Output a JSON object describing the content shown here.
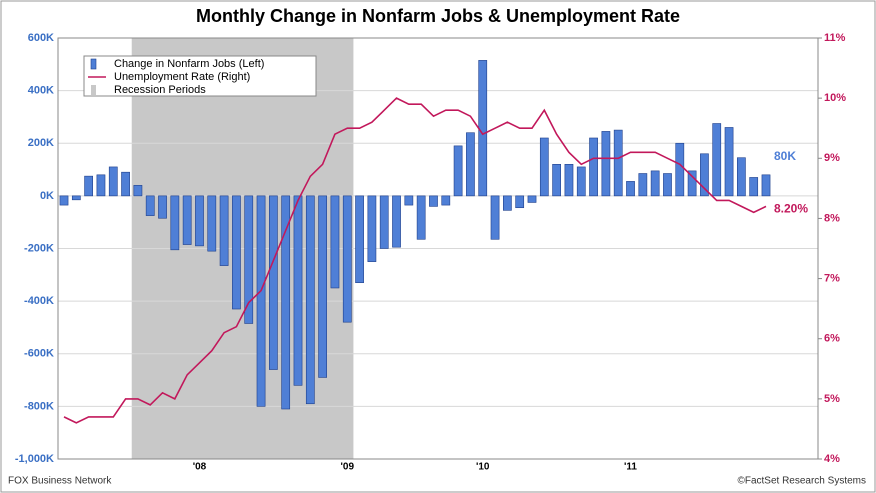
{
  "chart_data": {
    "type": "bar_line",
    "title": "Monthly Change in Nonfarm Jobs & Unemployment Rate",
    "source_left": "FOX Business Network",
    "source_right": "©FactSet Research Systems",
    "categories": [
      null,
      null,
      null,
      null,
      null,
      null,
      null,
      null,
      null,
      null,
      null,
      "'08",
      null,
      null,
      null,
      null,
      null,
      null,
      null,
      null,
      null,
      null,
      null,
      "'09",
      null,
      null,
      null,
      null,
      null,
      null,
      null,
      null,
      null,
      null,
      "'10",
      null,
      null,
      null,
      null,
      null,
      null,
      null,
      null,
      null,
      null,
      null,
      "'11",
      null,
      null,
      null,
      null,
      null,
      null,
      null,
      null,
      null,
      null,
      null
    ],
    "recession": {
      "name": "Recession Periods",
      "color": "#c8c8c8",
      "from": 6,
      "to": 23
    },
    "series": [
      {
        "name": "Change in Nonfarm Jobs (Left)",
        "color": "#4f7fd6",
        "axis": "y",
        "values": [
          -35,
          -15,
          75,
          80,
          110,
          90,
          40,
          -75,
          -85,
          -205,
          -185,
          -190,
          -210,
          -265,
          -430,
          -485,
          -800,
          -660,
          -810,
          -720,
          -790,
          -690,
          -350,
          -480,
          -330,
          -250,
          -200,
          -195,
          -35,
          -165,
          -40,
          -35,
          190,
          240,
          515,
          -165,
          -55,
          -45,
          -25,
          220,
          120,
          120,
          110,
          220,
          245,
          250,
          55,
          85,
          95,
          85,
          200,
          95,
          160,
          275,
          260,
          145,
          70,
          80
        ],
        "value_labels": [
          null,
          null,
          null,
          null,
          null,
          null,
          null,
          null,
          null,
          null,
          null,
          null,
          null,
          null,
          null,
          null,
          null,
          null,
          null,
          null,
          null,
          null,
          null,
          null,
          null,
          null,
          null,
          null,
          null,
          null,
          null,
          null,
          null,
          null,
          null,
          null,
          null,
          null,
          null,
          null,
          null,
          null,
          null,
          null,
          null,
          null,
          null,
          null,
          null,
          null,
          null,
          null,
          null,
          null,
          null,
          null,
          null,
          "80K"
        ]
      },
      {
        "name": "Unemployment Rate (Right)",
        "color": "#c2185b",
        "axis": "y2",
        "values": [
          4.7,
          4.6,
          4.7,
          4.7,
          4.7,
          5.0,
          5.0,
          4.9,
          5.1,
          5.0,
          5.4,
          5.6,
          5.8,
          6.1,
          6.2,
          6.6,
          6.8,
          7.3,
          7.8,
          8.3,
          8.7,
          8.9,
          9.4,
          9.5,
          9.5,
          9.6,
          9.8,
          10.0,
          9.9,
          9.9,
          9.7,
          9.8,
          9.8,
          9.7,
          9.4,
          9.5,
          9.6,
          9.5,
          9.5,
          9.8,
          9.4,
          9.1,
          8.9,
          9.0,
          9.0,
          9.0,
          9.1,
          9.1,
          9.1,
          9.0,
          8.9,
          8.7,
          8.5,
          8.3,
          8.3,
          8.2,
          8.1,
          8.2
        ],
        "value_labels": [
          null,
          null,
          null,
          null,
          null,
          null,
          null,
          null,
          null,
          null,
          null,
          null,
          null,
          null,
          null,
          null,
          null,
          null,
          null,
          null,
          null,
          null,
          null,
          null,
          null,
          null,
          null,
          null,
          null,
          null,
          null,
          null,
          null,
          null,
          null,
          null,
          null,
          null,
          null,
          null,
          null,
          null,
          null,
          null,
          null,
          null,
          null,
          null,
          null,
          null,
          null,
          null,
          null,
          null,
          null,
          null,
          null,
          "8.20%"
        ]
      }
    ],
    "ylim": [
      -1000,
      600
    ],
    "yticks": [
      {
        "value": -1000,
        "label": "-1,000K"
      },
      {
        "value": -800,
        "label": "-800K"
      },
      {
        "value": -600,
        "label": "-600K"
      },
      {
        "value": -400,
        "label": "-400K"
      },
      {
        "value": -200,
        "label": "-200K"
      },
      {
        "value": 0,
        "label": "0K"
      },
      {
        "value": 200,
        "label": "200K"
      },
      {
        "value": 400,
        "label": "400K"
      },
      {
        "value": 600,
        "label": "600K"
      }
    ],
    "y2lim": [
      4,
      11
    ],
    "y2ticks": [
      {
        "value": 4,
        "label": "4%"
      },
      {
        "value": 5,
        "label": "5%"
      },
      {
        "value": 6,
        "label": "6%"
      },
      {
        "value": 7,
        "label": "7%"
      },
      {
        "value": 8,
        "label": "8%"
      },
      {
        "value": 9,
        "label": "9%"
      },
      {
        "value": 10,
        "label": "10%"
      },
      {
        "value": 11,
        "label": "11%"
      }
    ],
    "grid": true,
    "legend": "top-left"
  }
}
